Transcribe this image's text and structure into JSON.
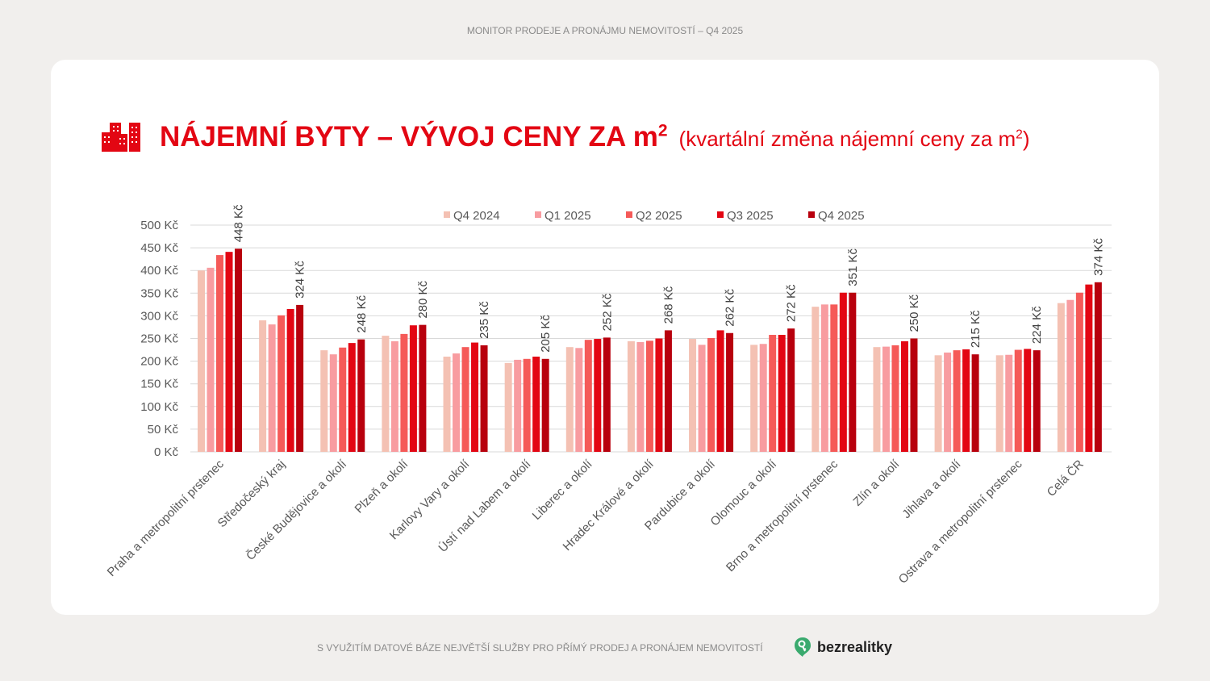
{
  "header": {
    "top_title": "MONITOR PRODEJE A PRONÁJMU NEMOVITOSTÍ – Q4 2025"
  },
  "heading": {
    "main": "NÁJEMNÍ BYTY – VÝVOJ CENY ZA m",
    "main_sup": "2",
    "sub": "(kvartální změna nájemní ceny za m",
    "sub_sup": "2",
    "sub_end": ")",
    "icon": "buildings-icon"
  },
  "footer": {
    "text": "S VYUŽITÍM DATOVÉ BÁZE NEJVĚTŠÍ SLUŽBY PRO PŘÍMÝ PRODEJ A PRONÁJEM NEMOVITOSTÍ",
    "logo_text": "bezrealitky",
    "logo_icon": "key-pin-icon"
  },
  "chart_data": {
    "type": "bar",
    "title": "",
    "xlabel": "",
    "ylabel": "",
    "ylim": [
      0,
      500
    ],
    "yticks": [
      0,
      50,
      100,
      150,
      200,
      250,
      300,
      350,
      400,
      450,
      500
    ],
    "ytick_labels": [
      "0 Kč",
      "50 Kč",
      "100 Kč",
      "150 Kč",
      "200 Kč",
      "250 Kč",
      "300 Kč",
      "350 Kč",
      "400 Kč",
      "450 Kč",
      "500 Kč"
    ],
    "grid": true,
    "legend_placement": "top-center",
    "categories": [
      "Praha a metropolitní prstenec",
      "Středočeský kraj",
      "České Budějovice a okolí",
      "Plzeň a okolí",
      "Karlovy Vary a okolí",
      "Ústí nad Labem a okolí",
      "Liberec a okolí",
      "Hradec Králové a okolí",
      "Pardubice a okolí",
      "Olomouc a okolí",
      "Brno a metropolitní prstenec",
      "Zlín a okolí",
      "Jihlava a okolí",
      "Ostrava a metropolitní prstenec",
      "Celá ČR"
    ],
    "series": [
      {
        "name": "Q4 2024",
        "color": "#f4c1b3",
        "values": [
          400,
          290,
          224,
          256,
          210,
          196,
          231,
          244,
          249,
          236,
          320,
          231,
          213,
          213,
          328
        ]
      },
      {
        "name": "Q1 2025",
        "color": "#f89ca0",
        "values": [
          406,
          281,
          215,
          244,
          217,
          203,
          229,
          242,
          236,
          238,
          325,
          232,
          219,
          214,
          335
        ]
      },
      {
        "name": "Q2 2025",
        "color": "#f55a58",
        "values": [
          434,
          301,
          230,
          260,
          231,
          205,
          247,
          245,
          251,
          258,
          325,
          235,
          224,
          225,
          351
        ]
      },
      {
        "name": "Q3 2025",
        "color": "#e30613",
        "values": [
          441,
          315,
          240,
          279,
          241,
          210,
          249,
          250,
          268,
          258,
          351,
          244,
          226,
          227,
          369
        ]
      },
      {
        "name": "Q4 2025",
        "color": "#b8000d",
        "values": [
          448,
          324,
          248,
          280,
          235,
          205,
          252,
          268,
          262,
          272,
          351,
          250,
          215,
          224,
          374
        ]
      }
    ],
    "data_labels": [
      "448 Kč",
      "324 Kč",
      "248 Kč",
      "280 Kč",
      "235 Kč",
      "205 Kč",
      "252 Kč",
      "268 Kč",
      "262 Kč",
      "272 Kč",
      "351 Kč",
      "250 Kč",
      "215 Kč",
      "224 Kč",
      "374 Kč"
    ]
  }
}
